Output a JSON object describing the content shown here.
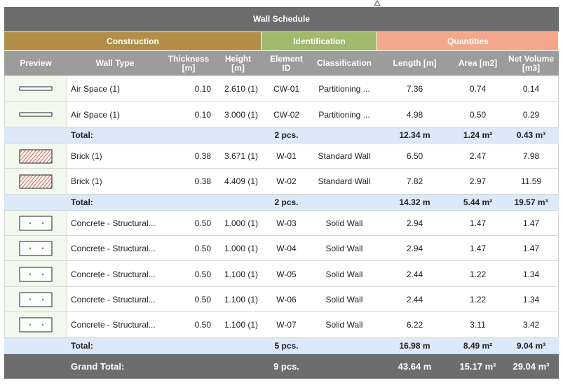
{
  "title": "Wall Schedule",
  "groups": [
    "Construction",
    "Identification",
    "Quantities"
  ],
  "columns": [
    "Preview",
    "Wall Type",
    "Thickness [m]",
    "Height [m]",
    "Element ID",
    "Classification",
    "Length [m]",
    "Area [m2]",
    "Net Volume [m3]"
  ],
  "sections": [
    {
      "rows": [
        [
          "Air Space (1)",
          "0.10",
          "2.610 (1)",
          "CW-01",
          "Partitioning ...",
          "7.36",
          "0.74",
          "0.14"
        ],
        [
          "Air Space (1)",
          "0.10",
          "3.000 (1)",
          "CW-02",
          "Partitioning ...",
          "4.98",
          "0.50",
          "0.29"
        ]
      ],
      "total": [
        "Total:",
        "2 pcs.",
        "12.34 m",
        "1.24 m²",
        "0.43 m³"
      ]
    },
    {
      "rows": [
        [
          "Brick (1)",
          "0.38",
          "3.671 (1)",
          "W-01",
          "Standard Wall",
          "6.50",
          "2.47",
          "7.98"
        ],
        [
          "Brick (1)",
          "0.38",
          "4.409 (1)",
          "W-02",
          "Standard Wall",
          "7.82",
          "2.97",
          "11.59"
        ]
      ],
      "total": [
        "Total:",
        "2 pcs.",
        "14.32 m",
        "5.44 m²",
        "19.57 m³"
      ]
    },
    {
      "rows": [
        [
          "Concrete - Structural...",
          "0.50",
          "1.000 (1)",
          "W-03",
          "Solid Wall",
          "2.94",
          "1.47",
          "1.47"
        ],
        [
          "Concrete - Structural...",
          "0.50",
          "1.000 (1)",
          "W-04",
          "Solid Wall",
          "2.94",
          "1.47",
          "1.47"
        ],
        [
          "Concrete - Structural...",
          "0.50",
          "1.100 (1)",
          "W-05",
          "Solid Wall",
          "2.44",
          "1.22",
          "1.34"
        ],
        [
          "Concrete - Structural...",
          "0.50",
          "1.100 (1)",
          "W-06",
          "Solid Wall",
          "2.44",
          "1.22",
          "1.34"
        ],
        [
          "Concrete - Structural...",
          "0.50",
          "1.100 (1)",
          "W-07",
          "Solid Wall",
          "6.22",
          "3.11",
          "3.42"
        ]
      ],
      "total": [
        "Total:",
        "5 pcs.",
        "16.98 m",
        "8.49 m²",
        "9.04 m³"
      ]
    }
  ],
  "grand_total": [
    "Grand Total:",
    "9 pcs.",
    "43.64 m",
    "15.17 m²",
    "29.04 m³"
  ]
}
